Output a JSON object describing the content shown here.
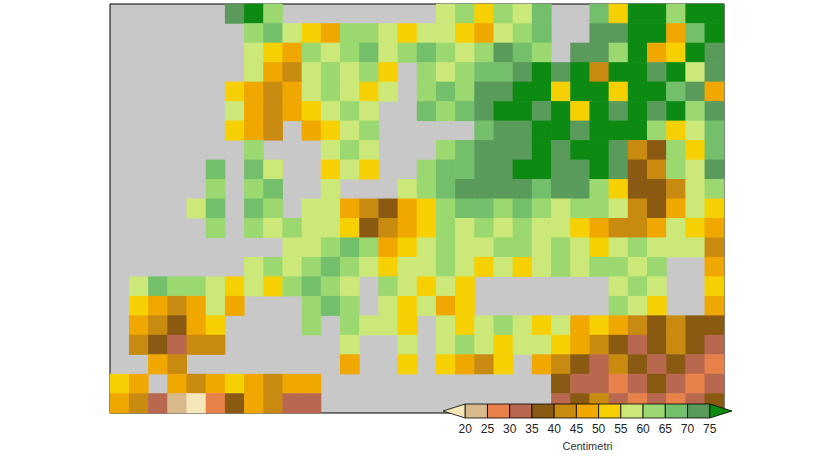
{
  "chart_data": {
    "type": "heatmap",
    "tick_labels": false,
    "cells": [
      [
        null,
        null,
        null,
        null,
        null,
        null,
        72,
        78,
        62,
        null,
        null,
        null,
        null,
        null,
        null,
        null,
        null,
        57,
        62,
        52,
        62,
        57,
        67,
        null,
        null,
        67,
        52,
        78,
        78,
        62,
        78,
        78
      ],
      [
        null,
        null,
        null,
        null,
        null,
        null,
        null,
        62,
        67,
        57,
        52,
        47,
        62,
        62,
        57,
        52,
        57,
        57,
        52,
        47,
        57,
        62,
        67,
        null,
        null,
        72,
        72,
        78,
        78,
        47,
        67,
        78
      ],
      [
        null,
        null,
        null,
        null,
        null,
        null,
        null,
        57,
        52,
        47,
        62,
        57,
        62,
        67,
        57,
        62,
        67,
        62,
        57,
        62,
        72,
        67,
        62,
        null,
        72,
        72,
        62,
        78,
        47,
        52,
        78,
        72
      ],
      [
        null,
        null,
        null,
        null,
        null,
        null,
        null,
        57,
        47,
        42,
        57,
        62,
        57,
        62,
        52,
        null,
        62,
        57,
        62,
        67,
        67,
        72,
        78,
        72,
        78,
        42,
        78,
        78,
        72,
        78,
        57,
        72
      ],
      [
        null,
        null,
        null,
        null,
        null,
        null,
        52,
        47,
        42,
        47,
        57,
        62,
        57,
        52,
        57,
        null,
        62,
        67,
        62,
        72,
        72,
        78,
        78,
        52,
        78,
        78,
        52,
        78,
        78,
        67,
        72,
        47
      ],
      [
        null,
        null,
        null,
        null,
        null,
        null,
        57,
        47,
        42,
        47,
        52,
        57,
        62,
        57,
        null,
        null,
        67,
        62,
        67,
        72,
        78,
        78,
        72,
        78,
        52,
        78,
        72,
        78,
        72,
        78,
        62,
        72
      ],
      [
        null,
        null,
        null,
        null,
        null,
        null,
        52,
        47,
        42,
        null,
        47,
        52,
        57,
        62,
        null,
        null,
        null,
        null,
        null,
        67,
        72,
        72,
        78,
        78,
        72,
        78,
        78,
        78,
        62,
        52,
        57,
        67
      ],
      [
        null,
        null,
        null,
        null,
        null,
        null,
        null,
        62,
        null,
        null,
        null,
        57,
        62,
        57,
        null,
        null,
        null,
        62,
        67,
        72,
        72,
        72,
        78,
        72,
        78,
        78,
        72,
        42,
        37,
        62,
        52,
        67
      ],
      [
        null,
        null,
        null,
        null,
        null,
        67,
        null,
        67,
        57,
        null,
        null,
        52,
        57,
        52,
        null,
        null,
        62,
        67,
        67,
        72,
        72,
        78,
        78,
        72,
        72,
        78,
        72,
        37,
        42,
        62,
        57,
        72
      ],
      [
        null,
        null,
        null,
        null,
        null,
        62,
        null,
        62,
        67,
        null,
        null,
        57,
        null,
        null,
        null,
        57,
        62,
        67,
        72,
        72,
        72,
        72,
        67,
        72,
        72,
        62,
        52,
        37,
        37,
        42,
        57,
        62
      ],
      [
        null,
        null,
        null,
        null,
        57,
        67,
        null,
        67,
        62,
        null,
        57,
        57,
        47,
        42,
        37,
        47,
        52,
        62,
        67,
        67,
        62,
        67,
        62,
        57,
        62,
        62,
        57,
        42,
        37,
        47,
        57,
        52
      ],
      [
        null,
        null,
        null,
        null,
        null,
        62,
        null,
        62,
        57,
        62,
        57,
        57,
        52,
        37,
        42,
        47,
        52,
        62,
        57,
        62,
        57,
        62,
        57,
        57,
        52,
        47,
        42,
        42,
        47,
        57,
        52,
        47
      ],
      [
        null,
        null,
        null,
        null,
        null,
        null,
        null,
        null,
        null,
        57,
        57,
        62,
        67,
        62,
        47,
        52,
        57,
        62,
        57,
        57,
        62,
        62,
        57,
        62,
        57,
        52,
        57,
        62,
        57,
        57,
        57,
        42
      ],
      [
        null,
        null,
        null,
        null,
        null,
        null,
        null,
        57,
        62,
        57,
        62,
        67,
        62,
        57,
        52,
        57,
        57,
        62,
        57,
        52,
        57,
        52,
        57,
        62,
        57,
        62,
        62,
        57,
        62,
        null,
        null,
        47
      ],
      [
        null,
        57,
        67,
        62,
        62,
        57,
        52,
        57,
        52,
        62,
        67,
        62,
        57,
        null,
        62,
        57,
        52,
        57,
        52,
        null,
        null,
        null,
        null,
        null,
        null,
        null,
        57,
        62,
        57,
        null,
        null,
        52
      ],
      [
        null,
        52,
        47,
        42,
        47,
        57,
        47,
        null,
        null,
        null,
        62,
        67,
        62,
        null,
        57,
        52,
        57,
        47,
        52,
        null,
        null,
        null,
        null,
        null,
        null,
        null,
        62,
        57,
        52,
        null,
        null,
        47
      ],
      [
        null,
        47,
        42,
        37,
        47,
        52,
        null,
        null,
        null,
        null,
        62,
        null,
        62,
        57,
        57,
        52,
        null,
        57,
        52,
        57,
        62,
        57,
        52,
        57,
        47,
        52,
        47,
        42,
        37,
        42,
        37,
        37
      ],
      [
        null,
        42,
        37,
        32,
        42,
        42,
        null,
        null,
        null,
        null,
        null,
        null,
        57,
        null,
        null,
        57,
        null,
        57,
        62,
        57,
        52,
        57,
        57,
        52,
        47,
        42,
        37,
        32,
        37,
        42,
        37,
        32
      ],
      [
        null,
        null,
        47,
        42,
        null,
        null,
        null,
        null,
        null,
        null,
        null,
        null,
        47,
        null,
        null,
        52,
        null,
        52,
        47,
        42,
        52,
        null,
        47,
        42,
        37,
        32,
        42,
        37,
        32,
        37,
        32,
        27
      ],
      [
        52,
        47,
        null,
        47,
        42,
        47,
        52,
        47,
        42,
        47,
        47,
        null,
        null,
        null,
        null,
        null,
        null,
        null,
        null,
        null,
        null,
        null,
        null,
        37,
        32,
        32,
        27,
        32,
        37,
        32,
        27,
        32
      ],
      [
        47,
        42,
        32,
        22,
        18,
        27,
        37,
        47,
        42,
        32,
        32,
        null,
        null,
        null,
        null,
        null,
        null,
        null,
        null,
        null,
        null,
        null,
        null,
        32,
        37,
        42,
        32,
        27,
        32,
        27,
        32,
        37
      ]
    ],
    "colorbar": {
      "ticks": [
        20,
        25,
        30,
        35,
        40,
        45,
        50,
        55,
        60,
        65,
        70,
        75
      ],
      "colors": [
        "#f6e7b8",
        "#d8b98c",
        "#e8804a",
        "#b8684e",
        "#8a5a12",
        "#c98a10",
        "#f0a800",
        "#f6d000",
        "#cce878",
        "#9cd870",
        "#74bf6c",
        "#5a9a5a",
        "#0c8a12"
      ],
      "label": "Centimetri"
    }
  }
}
